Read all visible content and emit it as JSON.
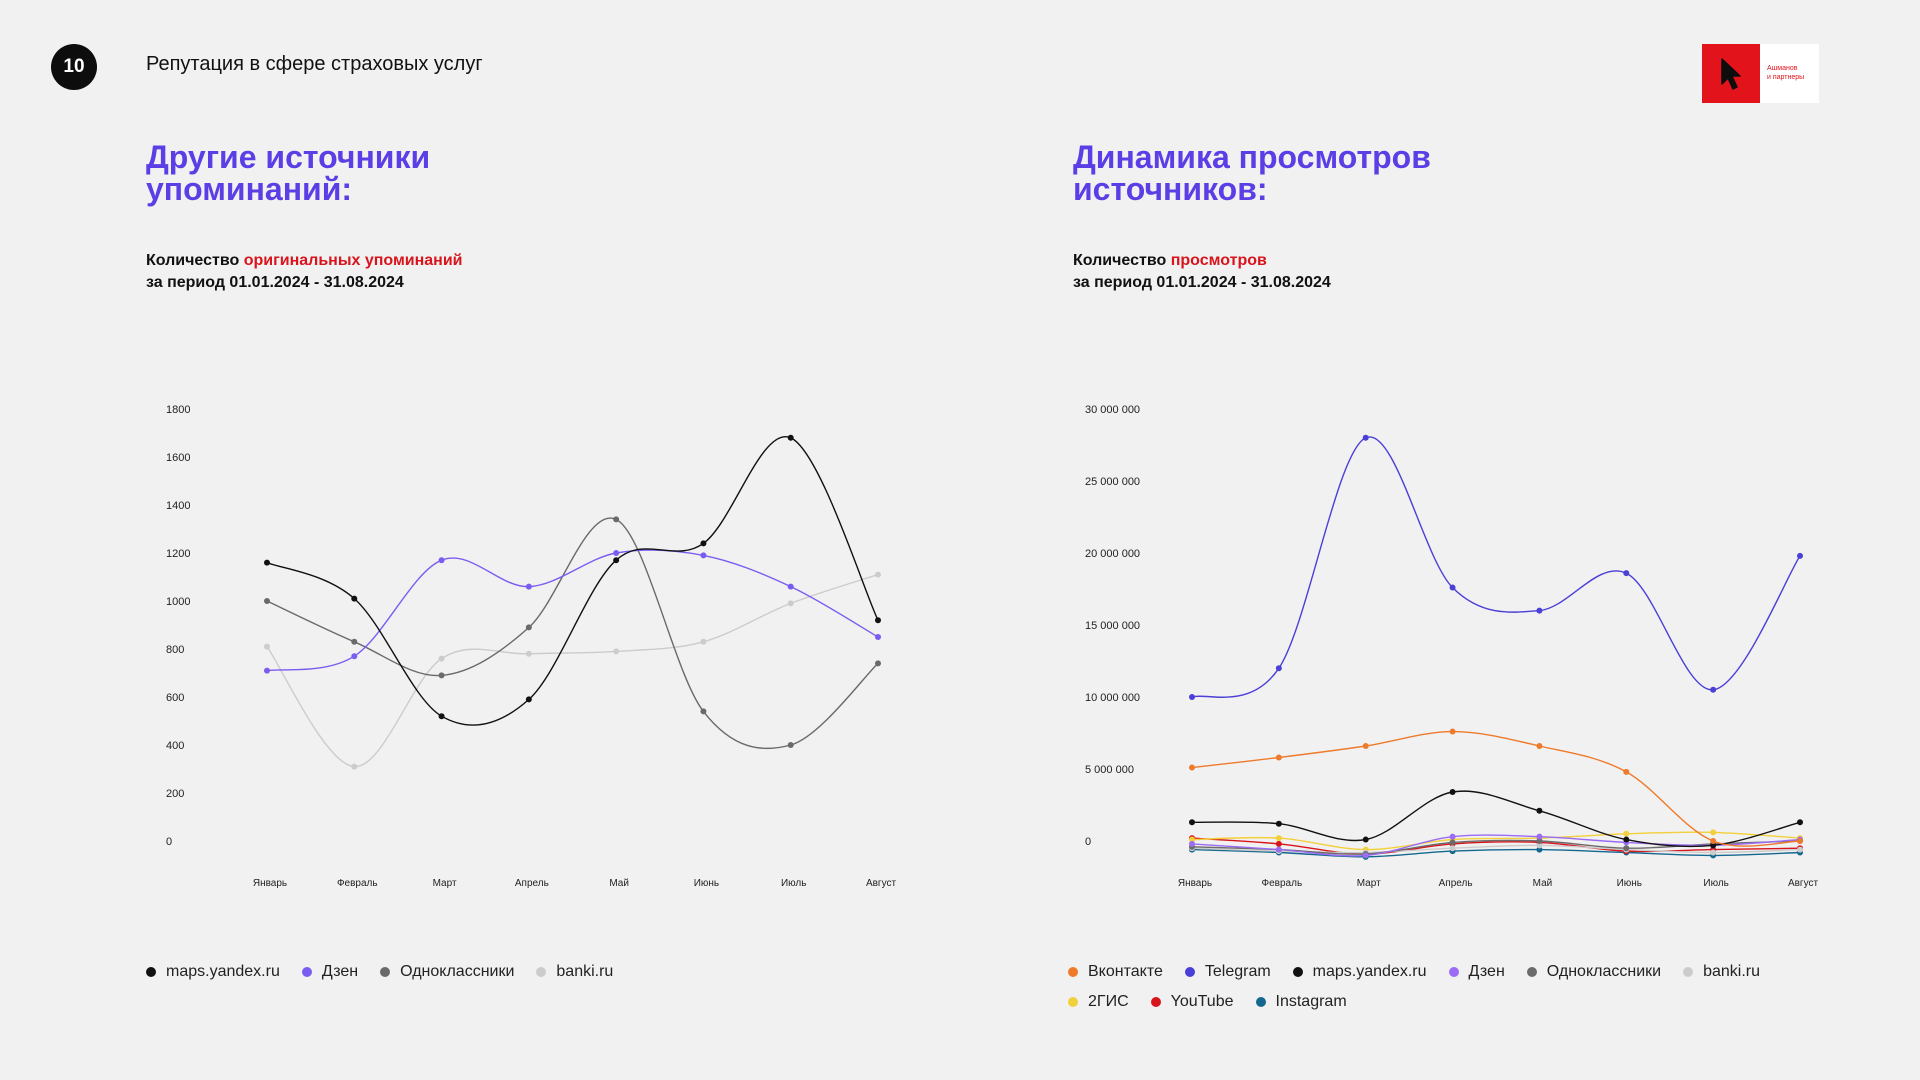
{
  "page": {
    "number": "10",
    "header_title": "Репутация в сфере страховых услуг",
    "logo": {
      "icon": "pointer-arrow-icon",
      "line1": "Ашманов",
      "line2": "и партнеры",
      "brand_color": "#e3131b"
    }
  },
  "left": {
    "title_line1": "Другие источники",
    "title_line2": "упоминаний:",
    "subtitle_prefix": "Количество ",
    "subtitle_highlight": "оригинальных упоминаний",
    "subtitle_line2": "за период 01.01.2024 - 31.08.2024"
  },
  "right": {
    "title_line1": "Динамика просмотров",
    "title_line2": "источников:",
    "subtitle_prefix": "Количество ",
    "subtitle_highlight": "просмотров",
    "subtitle_line2": "за период 01.01.2024 - 31.08.2024"
  },
  "accent_color": "#5b3ee5",
  "highlight_color": "#d8141c",
  "chart_data": [
    {
      "type": "line",
      "title": "Другие источники упоминаний",
      "categories": [
        "Январь",
        "Февраль",
        "Март",
        "Апрель",
        "Май",
        "Июнь",
        "Июль",
        "Август"
      ],
      "yticks": [
        "0",
        "200",
        "400",
        "600",
        "800",
        "1000",
        "1200",
        "1400",
        "1600",
        "1800"
      ],
      "ylim": [
        0,
        1800
      ],
      "series": [
        {
          "name": "maps.yandex.ru",
          "color": "#111111",
          "values": [
            1160,
            1010,
            520,
            590,
            1170,
            1240,
            1680,
            920
          ]
        },
        {
          "name": "Дзен",
          "color": "#7b5cf0",
          "values": [
            710,
            770,
            1170,
            1060,
            1200,
            1190,
            1060,
            850
          ]
        },
        {
          "name": "Одноклассники",
          "color": "#6a6a6a",
          "values": [
            1000,
            830,
            690,
            890,
            1340,
            540,
            400,
            740
          ]
        },
        {
          "name": "banki.ru",
          "color": "#cccccc",
          "values": [
            810,
            310,
            760,
            780,
            790,
            830,
            990,
            1110
          ]
        }
      ]
    },
    {
      "type": "line",
      "title": "Динамика просмотров источников",
      "categories": [
        "Январь",
        "Февраль",
        "Март",
        "Апрель",
        "Май",
        "Июнь",
        "Июль",
        "Август"
      ],
      "yticks": [
        "0",
        "5 000 000",
        "10 000 000",
        "15 000 000",
        "20 000 000",
        "25 000 000",
        "30 000 000"
      ],
      "ylim": [
        0,
        30000000
      ],
      "series": [
        {
          "name": "Вконтакте",
          "color": "#ee7a2b",
          "values": [
            5100000,
            5800000,
            6600000,
            7600000,
            6600000,
            4800000,
            0,
            0
          ]
        },
        {
          "name": "Telegram",
          "color": "#4a3fd6",
          "values": [
            10000000,
            12000000,
            28000000,
            17600000,
            16000000,
            18600000,
            10500000,
            19800000
          ]
        },
        {
          "name": "maps.yandex.ru",
          "color": "#111111",
          "values": [
            1300000,
            1200000,
            100000,
            3400000,
            2100000,
            100000,
            -300000,
            1300000
          ]
        },
        {
          "name": "Дзен",
          "color": "#9b6cf4",
          "values": [
            -200000,
            -600000,
            -1000000,
            300000,
            300000,
            -100000,
            -300000,
            100000
          ]
        },
        {
          "name": "Одноклассники",
          "color": "#6b6b6b",
          "values": [
            -400000,
            -600000,
            -900000,
            -100000,
            0,
            -500000,
            -200000,
            0
          ]
        },
        {
          "name": "banki.ru",
          "color": "#cccccc",
          "values": [
            -500000,
            -700000,
            -800000,
            -500000,
            -300000,
            -600000,
            -800000,
            -600000
          ]
        },
        {
          "name": "2ГИС",
          "color": "#f2d03b",
          "values": [
            100000,
            200000,
            -600000,
            100000,
            200000,
            500000,
            600000,
            200000
          ]
        },
        {
          "name": "YouTube",
          "color": "#d8141c",
          "values": [
            200000,
            -200000,
            -900000,
            -200000,
            -100000,
            -700000,
            -600000,
            -500000
          ]
        },
        {
          "name": "Instagram",
          "color": "#14688f",
          "values": [
            -600000,
            -800000,
            -1100000,
            -700000,
            -600000,
            -800000,
            -1000000,
            -800000
          ]
        }
      ]
    }
  ]
}
